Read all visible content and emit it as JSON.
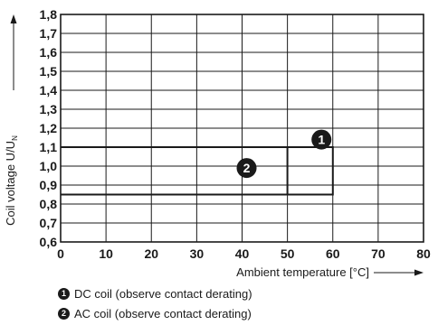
{
  "chart_data": {
    "type": "line",
    "x_ticks": [
      "0",
      "10",
      "20",
      "30",
      "40",
      "50",
      "60",
      "70",
      "80"
    ],
    "y_ticks": [
      "0,6",
      "0,7",
      "0,8",
      "0,9",
      "1,0",
      "1,1",
      "1,2",
      "1,3",
      "1,4",
      "1,5",
      "1,6",
      "1,7",
      "1,8"
    ],
    "xlim": [
      0,
      80
    ],
    "ylim": [
      0.6,
      1.8
    ],
    "xlabel": "Ambient temperature [°C]",
    "ylabel_main": "Coil voltage U/U",
    "ylabel_sub": "N",
    "grid": true,
    "series": [
      {
        "marker": "1",
        "name": "DC coil (observe contact derating)",
        "points": [
          [
            0,
            0.85
          ],
          [
            60,
            0.85
          ],
          [
            60,
            1.1
          ],
          [
            0,
            1.1
          ]
        ],
        "badge": {
          "x": 57.5,
          "y": 1.14
        }
      },
      {
        "marker": "2",
        "name": "AC coil (observe contact derating)",
        "points": [
          [
            0,
            0.85
          ],
          [
            50,
            0.85
          ],
          [
            50,
            1.1
          ],
          [
            0,
            1.1
          ]
        ],
        "badge": {
          "x": 41,
          "y": 0.99
        }
      }
    ]
  },
  "legend": [
    {
      "marker": "1",
      "label": "DC coil (observe contact derating)"
    },
    {
      "marker": "2",
      "label": "AC coil (observe contact derating)"
    }
  ]
}
